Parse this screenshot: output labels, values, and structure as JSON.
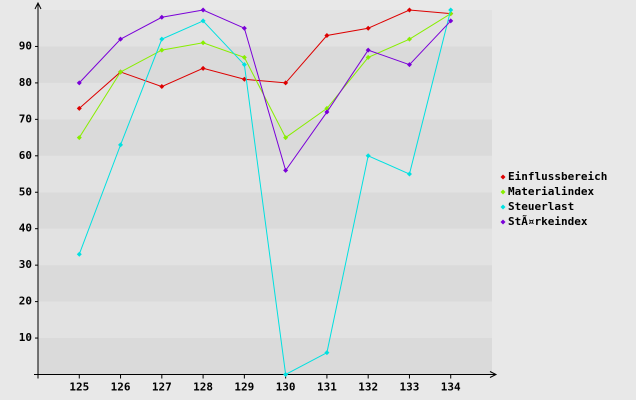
{
  "chart_data": {
    "type": "line",
    "categories": [
      "125",
      "126",
      "127",
      "128",
      "129",
      "130",
      "131",
      "132",
      "133",
      "134"
    ],
    "series": [
      {
        "name": "Einflussbereich",
        "color": "#dd0000",
        "values": [
          73,
          83,
          79,
          84,
          81,
          80,
          93,
          95,
          100,
          99
        ]
      },
      {
        "name": "Materialindex",
        "color": "#88ee00",
        "values": [
          65,
          83,
          89,
          91,
          87,
          65,
          73,
          87,
          92,
          99
        ]
      },
      {
        "name": "Steuerlast",
        "color": "#00e0e0",
        "values": [
          33,
          63,
          92,
          97,
          85,
          0,
          6,
          60,
          55,
          100
        ]
      },
      {
        "name": "StÃ¤rkeindex",
        "color": "#7a00d8",
        "values": [
          80,
          92,
          98,
          100,
          95,
          56,
          72,
          89,
          85,
          97
        ]
      }
    ],
    "ylim": [
      0,
      100
    ],
    "yticks": [
      10,
      20,
      30,
      40,
      50,
      60,
      70,
      80,
      90
    ],
    "grid": true,
    "legend": "right"
  }
}
